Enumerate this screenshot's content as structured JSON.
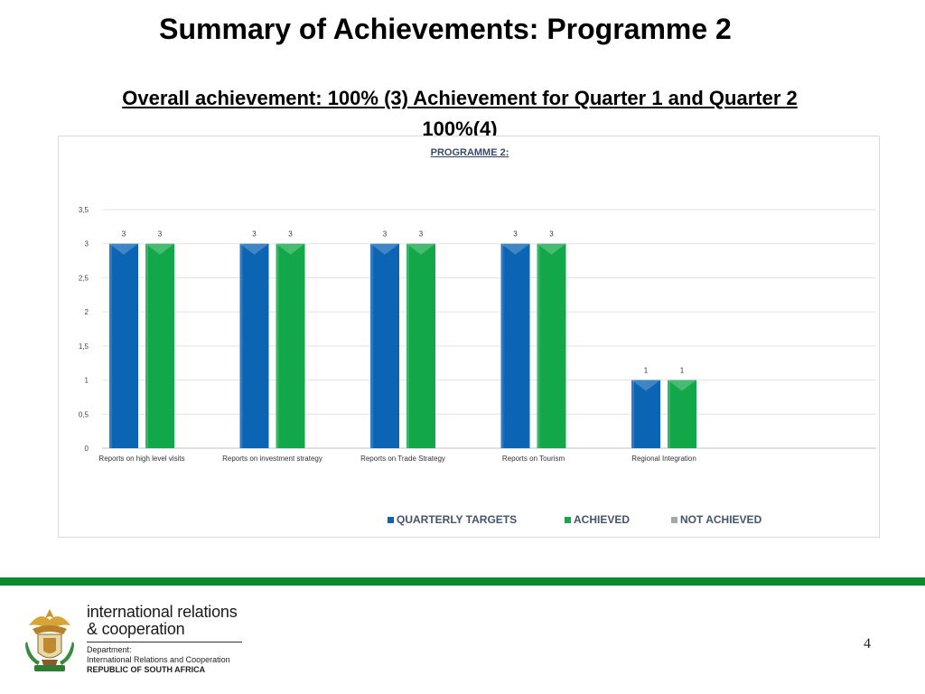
{
  "slide": {
    "title": "Summary of Achievements: Programme 2",
    "subtitle_line1": "Overall achievement: 100% (3) Achievement for Quarter 1 and Quarter 2",
    "subtitle_line2": "100%(4)",
    "page_number": "4"
  },
  "footer": {
    "brand_line1": "international relations",
    "brand_line2": "& cooperation",
    "dept_label": "Department:",
    "dept_name": "International Relations and Cooperation",
    "country": "REPUBLIC OF SOUTH AFRICA"
  },
  "colors": {
    "quarterly_targets": "#0c64b4",
    "achieved": "#12a84a",
    "not_achieved": "#a6a6a6",
    "footer_bar": "#0a8a2c"
  },
  "chart_data": {
    "type": "bar",
    "title": "PROGRAMME 2:",
    "categories": [
      "Reports on high level visits",
      "Reports on investment strategy",
      "Reports on Trade Strategy",
      "Reports on Tourism",
      "Regional Integration"
    ],
    "series": [
      {
        "name": "QUARTERLY TARGETS",
        "values": [
          3,
          3,
          3,
          3,
          1
        ]
      },
      {
        "name": "ACHIEVED",
        "values": [
          3,
          3,
          3,
          3,
          1
        ]
      },
      {
        "name": "NOT ACHIEVED",
        "values": [
          0,
          0,
          0,
          0,
          0
        ]
      }
    ],
    "ylim": [
      0,
      3.5
    ],
    "yticks": [
      "0",
      "0,5",
      "1",
      "1,5",
      "2",
      "2,5",
      "3",
      "3,5"
    ],
    "grid": true,
    "legend_position": "bottom",
    "data_labels": true
  }
}
